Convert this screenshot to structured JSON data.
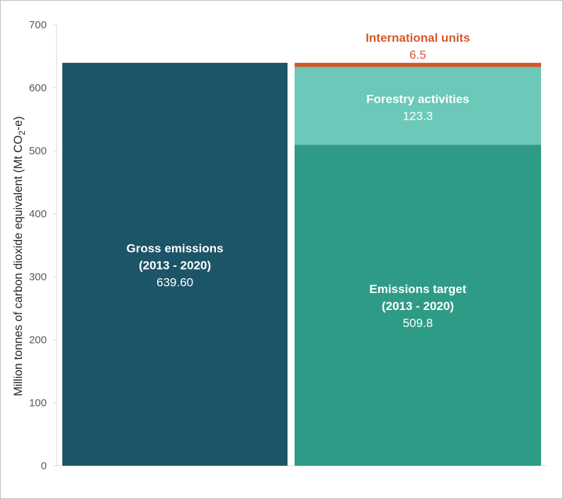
{
  "chart_data": {
    "type": "bar",
    "ylabel_prefix": "Million tonnes of carbon dioxide equivalent (Mt CO",
    "ylabel_sub": "2",
    "ylabel_suffix": "-e)",
    "ylim": [
      0,
      700
    ],
    "yticks": [
      0,
      100,
      200,
      300,
      400,
      500,
      600,
      700
    ],
    "bars": [
      {
        "name": "gross",
        "segments": [
          {
            "name": "Gross emissions (2013 - 2020)",
            "line1": "Gross emissions",
            "line2": "(2013 - 2020)",
            "value": 639.6,
            "value_label": "639.60",
            "color": "#1c5468"
          }
        ]
      },
      {
        "name": "target",
        "segments": [
          {
            "name": "Emissions target (2013 - 2020)",
            "line1": "Emissions target",
            "line2": "(2013 - 2020)",
            "value": 509.8,
            "value_label": "509.8",
            "color": "#2e9b87"
          },
          {
            "name": "Forestry activities",
            "line1": "Forestry activities",
            "value": 123.3,
            "value_label": "123.3",
            "color": "#6cc8b8"
          },
          {
            "name": "International units",
            "line1": "International units",
            "value": 6.5,
            "value_label": "6.5",
            "color": "#d4582a"
          }
        ]
      }
    ]
  }
}
